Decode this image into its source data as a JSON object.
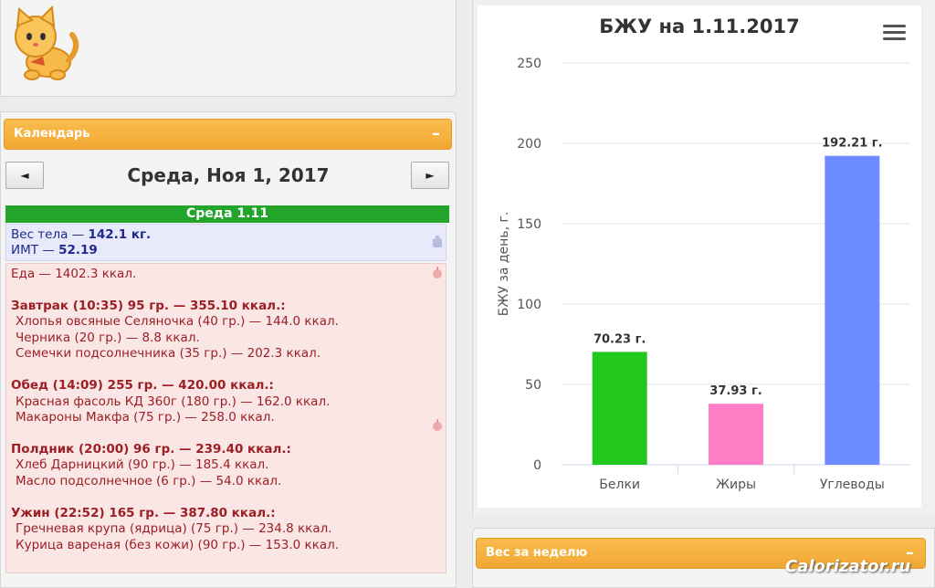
{
  "calendar": {
    "header": "Календарь",
    "collapse": "–",
    "prev": "◄",
    "next": "►",
    "date_title": "Среда, Ноя 1, 2017",
    "day_label": "Среда 1.11"
  },
  "weight": {
    "label1": "Вес тела — ",
    "value1": "142.1 кг.",
    "label2": "ИМТ — ",
    "value2": "52.19"
  },
  "food": {
    "total": "Еда — 1402.3 ккал.",
    "meals": [
      {
        "title": "Завтрак (10:35) 95 гр. — 355.10 ккал.:",
        "items": [
          "Хлопья овсяные Селяночка (40 гр.) — 144.0 ккал.",
          "Черника (20 гр.) — 8.8 ккал.",
          "Семечки подсолнечника (35 гр.) — 202.3 ккал."
        ]
      },
      {
        "title": "Обед (14:09) 255 гр. — 420.00 ккал.:",
        "items": [
          "Красная фасоль КД 360г (180 гр.) — 162.0 ккал.",
          "Макароны Макфа (75 гр.) — 258.0 ккал."
        ]
      },
      {
        "title": "Полдник (20:00) 96 гр. — 239.40 ккал.:",
        "items": [
          "Хлеб Дарницкий (90 гр.) — 185.4 ккал.",
          "Масло подсолнечное (6 гр.) — 54.0 ккал."
        ]
      },
      {
        "title": "Ужин (22:52) 165 гр. — 387.80 ккал.:",
        "items": [
          "Гречневая крупа (ядрица) (75 гр.) — 234.8 ккал.",
          "Курица вареная (без кожи) (90 гр.) — 153.0 ккал."
        ]
      }
    ]
  },
  "week": {
    "header": "Вес за неделю",
    "collapse": "–"
  },
  "watermark": "Calorizator.ru",
  "chart_data": {
    "type": "bar",
    "title": "БЖУ на 1.11.2017",
    "ylabel": "БЖУ за день, г.",
    "xlabel": "",
    "ylim": [
      0,
      250
    ],
    "yticks": [
      0,
      50,
      100,
      150,
      200,
      250
    ],
    "categories": [
      "Белки",
      "Жиры",
      "Углеводы"
    ],
    "values": [
      70.23,
      37.93,
      192.21
    ],
    "data_labels": [
      "70.23 г.",
      "37.93 г.",
      "192.21 г."
    ],
    "colors": [
      "#22c71e",
      "#ff7fc6",
      "#6d8cff"
    ],
    "grid": true
  }
}
